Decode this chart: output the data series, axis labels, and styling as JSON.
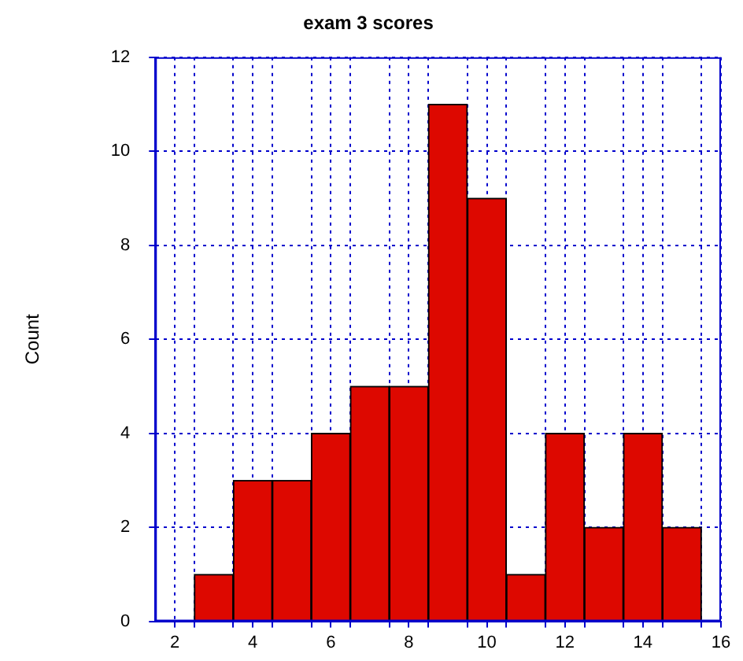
{
  "chart_data": {
    "type": "histogram",
    "title": "exam 3 scores",
    "ylabel": "Count",
    "bins": [
      2.5,
      3.5,
      4.5,
      5.5,
      6.5,
      7.5,
      8.5,
      9.5,
      10.5,
      11.5,
      12.5,
      13.5,
      14.5,
      15.5
    ],
    "values": [
      1,
      3,
      3,
      4,
      5,
      5,
      11,
      9,
      1,
      4,
      2,
      4,
      2
    ],
    "color": "#dd0800",
    "xlim": [
      1.5,
      16
    ],
    "xticks": [
      2,
      {
        "value": 2.5,
        "label": null
      },
      {
        "value": 3.5,
        "label": null
      },
      4,
      {
        "value": 4.5,
        "label": null
      },
      {
        "value": 5.5,
        "label": null
      },
      6,
      {
        "value": 6.5,
        "label": null
      },
      {
        "value": 7.5,
        "label": null
      },
      8,
      {
        "value": 8.5,
        "label": null
      },
      {
        "value": 9.5,
        "label": null
      },
      10,
      {
        "value": 10.5,
        "label": null
      },
      {
        "value": 11.5,
        "label": null
      },
      12,
      {
        "value": 12.5,
        "label": null
      },
      {
        "value": 13.5,
        "label": null
      },
      14,
      {
        "value": 14.5,
        "label": null
      },
      {
        "value": 15.5,
        "label": null
      },
      16
    ],
    "ylim": [
      0,
      12
    ],
    "yticks": [
      0,
      2,
      4,
      6,
      8,
      10,
      12
    ],
    "grid": true,
    "legend": false
  }
}
